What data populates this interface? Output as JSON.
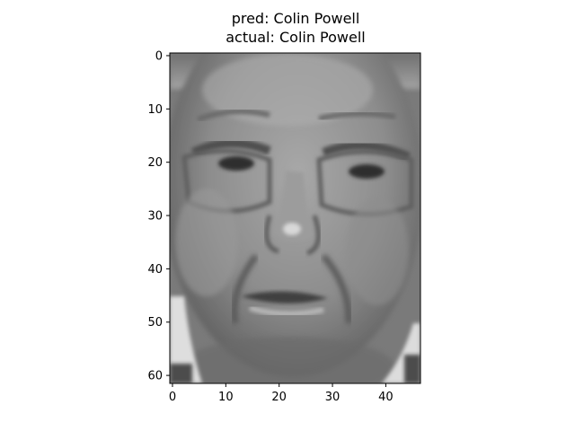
{
  "figure": {
    "title_lines": [
      "pred: Colin Powell",
      "actual: Colin Powell"
    ]
  },
  "image": {
    "description_icon": "grayscale-face-photo",
    "colormap": "gray",
    "rows": 62,
    "cols": 47
  },
  "axes": {
    "x_ticks": [
      0,
      10,
      20,
      30,
      40
    ],
    "y_ticks": [
      0,
      10,
      20,
      30,
      40,
      50,
      60
    ],
    "x_range": [
      -0.5,
      46.5
    ],
    "y_range": [
      61.5,
      -0.5
    ]
  }
}
